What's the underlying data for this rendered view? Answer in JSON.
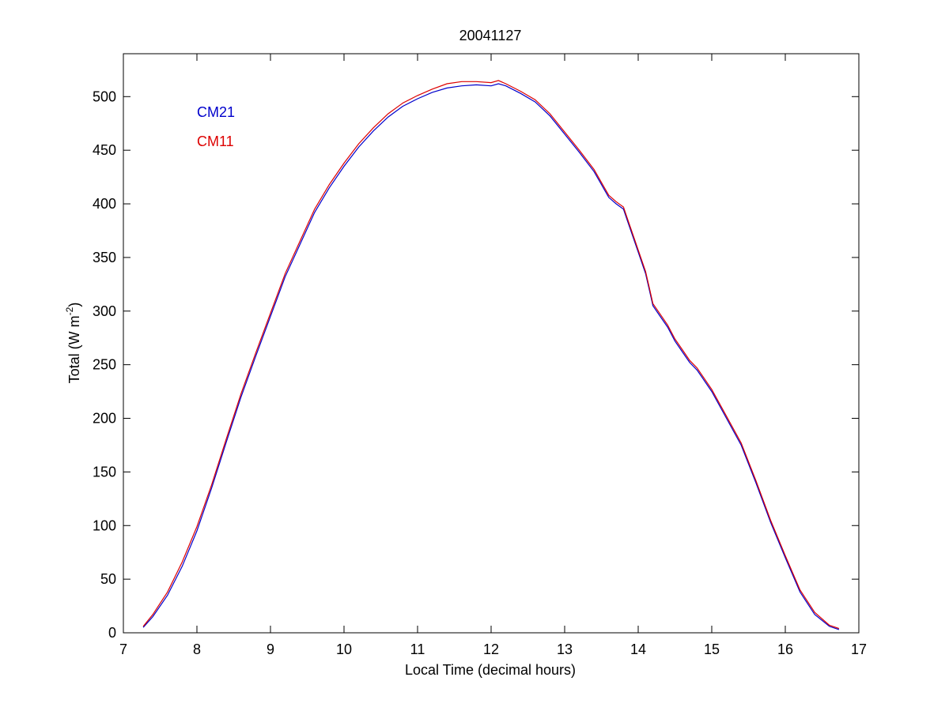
{
  "chart_data": {
    "type": "line",
    "title": "20041127",
    "xlabel": "Local Time (decimal hours)",
    "ylabel_main": "Total (W m",
    "ylabel_sup": "-2",
    "ylabel_end": ")",
    "xlim": [
      7,
      17
    ],
    "ylim": [
      0,
      540
    ],
    "xticks": [
      7,
      8,
      9,
      10,
      11,
      12,
      13,
      14,
      15,
      16,
      17
    ],
    "yticks": [
      0,
      50,
      100,
      150,
      200,
      250,
      300,
      350,
      400,
      450,
      500
    ],
    "grid": false,
    "legend_placement": "top-left",
    "series": [
      {
        "name": "CM21",
        "color": "#0000cc",
        "x": [
          7.27,
          7.4,
          7.6,
          7.8,
          8.0,
          8.2,
          8.4,
          8.6,
          8.8,
          9.0,
          9.2,
          9.4,
          9.6,
          9.8,
          10.0,
          10.2,
          10.4,
          10.6,
          10.8,
          11.0,
          11.2,
          11.4,
          11.6,
          11.8,
          12.0,
          12.1,
          12.2,
          12.4,
          12.6,
          12.8,
          13.0,
          13.2,
          13.4,
          13.5,
          13.6,
          13.7,
          13.8,
          13.85,
          13.9,
          14.0,
          14.1,
          14.15,
          14.2,
          14.3,
          14.4,
          14.5,
          14.6,
          14.7,
          14.8,
          14.9,
          15.0,
          15.2,
          15.4,
          15.6,
          15.8,
          16.0,
          16.2,
          16.4,
          16.6,
          16.73
        ],
        "y": [
          5,
          15,
          35,
          62,
          95,
          135,
          178,
          220,
          258,
          295,
          332,
          362,
          392,
          415,
          435,
          453,
          468,
          481,
          491,
          498,
          504,
          508,
          510,
          511,
          510,
          512,
          510,
          503,
          495,
          482,
          465,
          448,
          430,
          418,
          406,
          400,
          395,
          385,
          375,
          355,
          335,
          320,
          305,
          295,
          285,
          272,
          262,
          252,
          245,
          235,
          225,
          200,
          175,
          140,
          103,
          70,
          38,
          17,
          6,
          3
        ]
      },
      {
        "name": "CM11",
        "color": "#dd0000",
        "x": [
          7.27,
          7.4,
          7.6,
          7.8,
          8.0,
          8.2,
          8.4,
          8.6,
          8.8,
          9.0,
          9.2,
          9.4,
          9.6,
          9.8,
          10.0,
          10.2,
          10.4,
          10.6,
          10.8,
          11.0,
          11.2,
          11.4,
          11.6,
          11.8,
          12.0,
          12.1,
          12.2,
          12.4,
          12.6,
          12.8,
          13.0,
          13.2,
          13.4,
          13.5,
          13.6,
          13.7,
          13.8,
          13.85,
          13.9,
          14.0,
          14.1,
          14.15,
          14.2,
          14.3,
          14.4,
          14.5,
          14.6,
          14.7,
          14.8,
          14.9,
          15.0,
          15.2,
          15.4,
          15.6,
          15.8,
          16.0,
          16.2,
          16.4,
          16.6,
          16.73
        ],
        "y": [
          6,
          17,
          38,
          66,
          99,
          138,
          181,
          223,
          261,
          298,
          335,
          365,
          395,
          418,
          438,
          456,
          471,
          484,
          494,
          501,
          507,
          512,
          514,
          514,
          513,
          515,
          512,
          505,
          497,
          484,
          467,
          450,
          432,
          420,
          408,
          402,
          397,
          387,
          377,
          357,
          337,
          322,
          307,
          297,
          287,
          274,
          264,
          254,
          247,
          237,
          227,
          202,
          177,
          142,
          105,
          72,
          40,
          19,
          7,
          4
        ]
      }
    ]
  }
}
